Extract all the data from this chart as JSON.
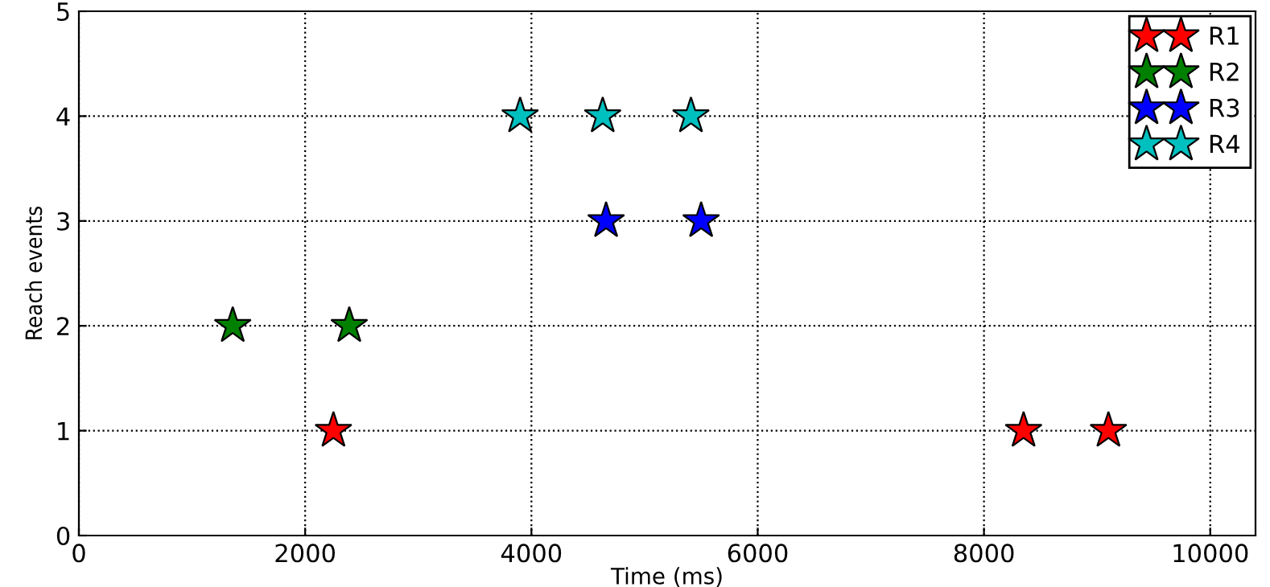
{
  "chart_data": {
    "type": "scatter",
    "xlabel": "Time (ms)",
    "ylabel": "Reach events",
    "series": [
      {
        "name": "R1",
        "color": "#ff0000",
        "x": [
          2250,
          8350,
          9100
        ],
        "values": [
          1,
          1,
          1
        ]
      },
      {
        "name": "R2",
        "color": "#008000",
        "x": [
          1360,
          2390
        ],
        "values": [
          2,
          2
        ]
      },
      {
        "name": "R3",
        "color": "#0000ff",
        "x": [
          4660,
          5500
        ],
        "values": [
          3,
          3
        ]
      },
      {
        "name": "R4",
        "color": "#00bfbf",
        "x": [
          3900,
          4630,
          5410
        ],
        "values": [
          4,
          4,
          4
        ]
      }
    ],
    "xlim": [
      0,
      10400
    ],
    "ylim": [
      0,
      5
    ],
    "xticks": [
      0,
      2000,
      4000,
      6000,
      8000,
      10000
    ],
    "yticks": [
      0,
      1,
      2,
      3,
      4,
      5
    ],
    "grid": true,
    "legend": "top right",
    "marker": "star"
  }
}
